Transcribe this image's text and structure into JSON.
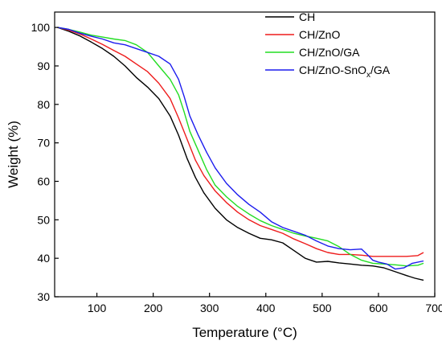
{
  "chart_data": {
    "type": "line",
    "title": "",
    "xlabel": "Temperature (°C)",
    "ylabel": "Weight (%)",
    "xlim": [
      25,
      700
    ],
    "ylim": [
      30,
      104
    ],
    "xticks": [
      100,
      200,
      300,
      400,
      500,
      600,
      700
    ],
    "yticks": [
      30,
      40,
      50,
      60,
      70,
      80,
      90,
      100
    ],
    "legend_position": "top-right",
    "grid": false,
    "series": [
      {
        "name": "CH",
        "color": "#000000",
        "points": [
          [
            30,
            100
          ],
          [
            50,
            99
          ],
          [
            70,
            97.8
          ],
          [
            90,
            96.2
          ],
          [
            110,
            94.5
          ],
          [
            130,
            92.5
          ],
          [
            150,
            90
          ],
          [
            170,
            87
          ],
          [
            190,
            84.5
          ],
          [
            210,
            81.5
          ],
          [
            230,
            77
          ],
          [
            245,
            72
          ],
          [
            260,
            66
          ],
          [
            275,
            61
          ],
          [
            290,
            57
          ],
          [
            310,
            53
          ],
          [
            330,
            50
          ],
          [
            350,
            48
          ],
          [
            370,
            46.5
          ],
          [
            390,
            45.2
          ],
          [
            410,
            44.8
          ],
          [
            430,
            44
          ],
          [
            450,
            42
          ],
          [
            470,
            40
          ],
          [
            490,
            39
          ],
          [
            510,
            39.2
          ],
          [
            530,
            38.8
          ],
          [
            550,
            38.5
          ],
          [
            570,
            38.2
          ],
          [
            590,
            38
          ],
          [
            610,
            37.5
          ],
          [
            630,
            36.5
          ],
          [
            650,
            35.5
          ],
          [
            665,
            34.8
          ],
          [
            680,
            34.3
          ]
        ]
      },
      {
        "name": "CH/ZnO",
        "color": "#ee1c1c",
        "points": [
          [
            30,
            100
          ],
          [
            50,
            99.3
          ],
          [
            70,
            98.3
          ],
          [
            90,
            97
          ],
          [
            110,
            95.6
          ],
          [
            130,
            94
          ],
          [
            150,
            92.5
          ],
          [
            170,
            90.5
          ],
          [
            190,
            88.5
          ],
          [
            210,
            85.5
          ],
          [
            230,
            81.5
          ],
          [
            245,
            76.5
          ],
          [
            260,
            71
          ],
          [
            275,
            65.5
          ],
          [
            290,
            61.5
          ],
          [
            310,
            57.5
          ],
          [
            330,
            54.5
          ],
          [
            350,
            52
          ],
          [
            370,
            50
          ],
          [
            390,
            48.5
          ],
          [
            410,
            47.5
          ],
          [
            430,
            46.5
          ],
          [
            450,
            45
          ],
          [
            470,
            43.8
          ],
          [
            490,
            42.5
          ],
          [
            510,
            41.5
          ],
          [
            530,
            41
          ],
          [
            550,
            41
          ],
          [
            570,
            40.8
          ],
          [
            590,
            40.5
          ],
          [
            610,
            40.5
          ],
          [
            630,
            40.5
          ],
          [
            650,
            40.5
          ],
          [
            670,
            40.7
          ],
          [
            680,
            41.5
          ]
        ]
      },
      {
        "name": "CH/ZnO/GA",
        "color": "#22dd22",
        "points": [
          [
            30,
            100
          ],
          [
            50,
            99.5
          ],
          [
            70,
            98.8
          ],
          [
            90,
            98
          ],
          [
            110,
            97.5
          ],
          [
            130,
            97
          ],
          [
            150,
            96.6
          ],
          [
            170,
            95.5
          ],
          [
            190,
            93.5
          ],
          [
            210,
            90
          ],
          [
            230,
            86.5
          ],
          [
            245,
            82.5
          ],
          [
            255,
            78
          ],
          [
            265,
            73
          ],
          [
            280,
            68
          ],
          [
            295,
            63
          ],
          [
            310,
            59
          ],
          [
            330,
            56
          ],
          [
            350,
            53.5
          ],
          [
            370,
            51.5
          ],
          [
            390,
            49.8
          ],
          [
            410,
            48.5
          ],
          [
            430,
            47.5
          ],
          [
            450,
            46.5
          ],
          [
            470,
            45.8
          ],
          [
            490,
            45.2
          ],
          [
            510,
            44.5
          ],
          [
            530,
            43
          ],
          [
            550,
            41
          ],
          [
            570,
            39.5
          ],
          [
            590,
            38.7
          ],
          [
            610,
            38.5
          ],
          [
            630,
            38.3
          ],
          [
            650,
            38
          ],
          [
            670,
            38.2
          ],
          [
            680,
            38.7
          ]
        ]
      },
      {
        "name": "CH/ZnO-SnOₓ/GA",
        "color": "#1c1cee",
        "points": [
          [
            30,
            100
          ],
          [
            50,
            99.5
          ],
          [
            70,
            98.5
          ],
          [
            90,
            97.7
          ],
          [
            110,
            97
          ],
          [
            130,
            96
          ],
          [
            150,
            95.5
          ],
          [
            170,
            94.5
          ],
          [
            190,
            93.5
          ],
          [
            210,
            92.5
          ],
          [
            230,
            90.5
          ],
          [
            245,
            86.5
          ],
          [
            255,
            82
          ],
          [
            265,
            77
          ],
          [
            280,
            72
          ],
          [
            295,
            67.5
          ],
          [
            310,
            63.5
          ],
          [
            330,
            59.5
          ],
          [
            350,
            56.5
          ],
          [
            370,
            54
          ],
          [
            390,
            52
          ],
          [
            410,
            49.5
          ],
          [
            430,
            48
          ],
          [
            450,
            47
          ],
          [
            470,
            46
          ],
          [
            490,
            44.5
          ],
          [
            510,
            43.2
          ],
          [
            530,
            42.5
          ],
          [
            550,
            42.2
          ],
          [
            570,
            42.4
          ],
          [
            580,
            41
          ],
          [
            590,
            39.5
          ],
          [
            600,
            39
          ],
          [
            615,
            38.5
          ],
          [
            630,
            37.2
          ],
          [
            645,
            37.5
          ],
          [
            660,
            38.7
          ],
          [
            680,
            39.3
          ]
        ]
      }
    ],
    "legend": [
      {
        "label": "CH",
        "color": "#000000"
      },
      {
        "label": "CH/ZnO",
        "color": "#ee1c1c"
      },
      {
        "label": "CH/ZnO/GA",
        "color": "#22dd22"
      },
      {
        "label_main": "CH/ZnO-SnO",
        "label_sub": "x",
        "label_tail": "/GA",
        "color": "#1c1cee"
      }
    ]
  }
}
